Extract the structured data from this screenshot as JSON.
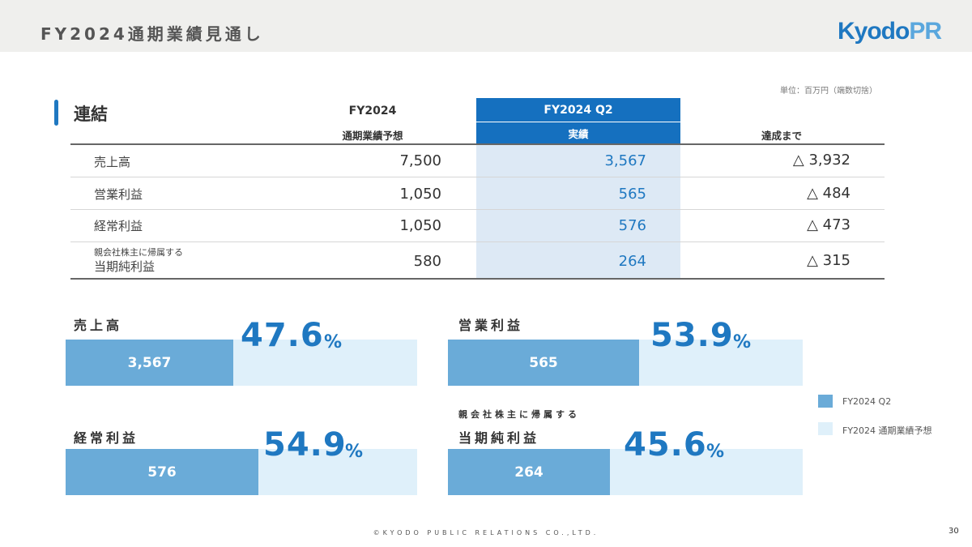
{
  "header": {
    "title": "FY2024通期業績見通し",
    "logo_kyodo": "Kyodo",
    "logo_pr": "PR"
  },
  "unit": "単位：百万円（端数切捨）",
  "table": {
    "section_title": "連結",
    "col_forecast_line1": "FY2024",
    "col_forecast_line2": "通期業績予想",
    "col_q2_line1": "FY2024 Q2",
    "col_q2_line2": "実績",
    "col_remaining": "達成まで",
    "rows": [
      {
        "label": "売上高",
        "sublabel": "",
        "forecast": "7,500",
        "actual": "3,567",
        "remaining": "△ 3,932"
      },
      {
        "label": "営業利益",
        "sublabel": "",
        "forecast": "1,050",
        "actual": "565",
        "remaining": "△ 484"
      },
      {
        "label": "経常利益",
        "sublabel": "",
        "forecast": "1,050",
        "actual": "576",
        "remaining": "△ 473"
      },
      {
        "label": "当期純利益",
        "sublabel": "親会社株主に帰属する",
        "forecast": "580",
        "actual": "264",
        "remaining": "△ 315"
      }
    ]
  },
  "progress": [
    {
      "title": "売上高",
      "subtitle": "",
      "value_label": "3,567",
      "percent": "47.6",
      "ratio": 0.476
    },
    {
      "title": "営業利益",
      "subtitle": "",
      "value_label": "565",
      "percent": "53.9",
      "ratio": 0.539
    },
    {
      "title": "経常利益",
      "subtitle": "",
      "value_label": "576",
      "percent": "54.9",
      "ratio": 0.549
    },
    {
      "title": "当期純利益",
      "subtitle": "親会社株主に帰属する",
      "value_label": "264",
      "percent": "45.6",
      "ratio": 0.456
    }
  ],
  "percent_sign": "%",
  "legend": [
    {
      "label": "FY2024 Q2",
      "color": "#6aabd8"
    },
    {
      "label": "FY2024 通期業績予想",
      "color": "#dff0fa"
    }
  ],
  "footer": "©KYODO PUBLIC RELATIONS CO.,LTD.",
  "page_number": "30"
}
